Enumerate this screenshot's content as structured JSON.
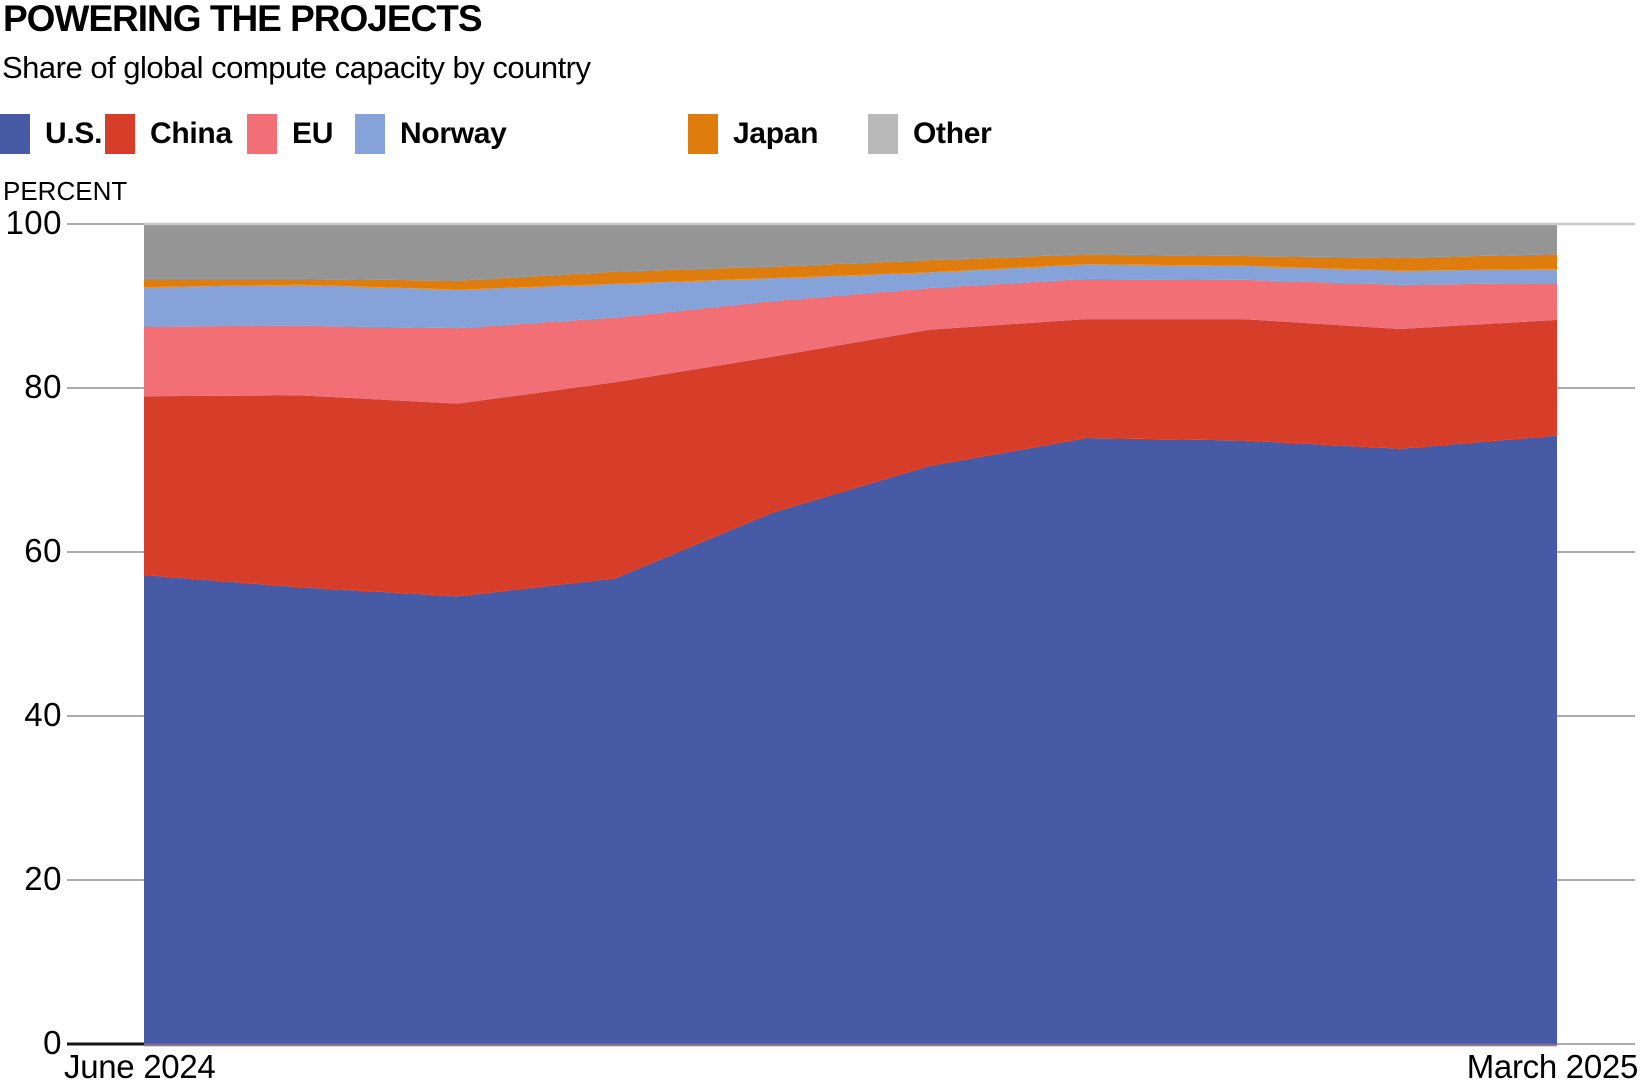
{
  "header": {
    "title": "POWERING THE PROJECTS",
    "subtitle": "Share of global compute capacity by country"
  },
  "y_axis": {
    "unit_label": "PERCENT",
    "ticks": [
      0,
      20,
      40,
      60,
      80,
      100
    ]
  },
  "x_axis": {
    "start_label": "June 2024",
    "end_label": "March 2025",
    "n_points": 10
  },
  "chart_data": {
    "type": "area",
    "stacked": true,
    "title": "POWERING THE PROJECTS",
    "subtitle": "Share of global compute capacity by country",
    "ylabel": "PERCENT",
    "ylim": [
      0,
      100
    ],
    "yticks": [
      0,
      20,
      40,
      60,
      80,
      100
    ],
    "grid": true,
    "legend_position": "top",
    "x_start": "June 2024",
    "x_end": "March 2025",
    "series": [
      {
        "name": "U.S.",
        "color": "#475AA5",
        "values": [
          57.2,
          55.7,
          54.6,
          56.8,
          64.8,
          70.5,
          73.9,
          73.6,
          72.6,
          74.2
        ]
      },
      {
        "name": "China",
        "color": "#D73E2A",
        "values": [
          21.8,
          23.4,
          23.5,
          23.9,
          19.0,
          16.6,
          14.5,
          14.8,
          14.6,
          14.1
        ]
      },
      {
        "name": "EU",
        "color": "#F26F75",
        "values": [
          8.5,
          8.5,
          9.2,
          7.9,
          6.8,
          5.1,
          4.9,
          4.8,
          5.4,
          4.5
        ]
      },
      {
        "name": "Norway",
        "color": "#85A2D9",
        "values": [
          4.8,
          5.0,
          4.7,
          4.1,
          2.8,
          1.9,
          1.8,
          1.7,
          1.7,
          1.7
        ]
      },
      {
        "name": "Japan",
        "color": "#DE7D0E",
        "values": [
          1.0,
          0.7,
          1.1,
          1.5,
          1.4,
          1.5,
          1.2,
          1.2,
          1.6,
          1.8
        ]
      },
      {
        "name": "Other",
        "color": "#959595",
        "legend_color": "#B9B9B9",
        "values": [
          6.7,
          6.7,
          6.9,
          5.8,
          5.2,
          4.4,
          3.7,
          3.9,
          4.1,
          3.7
        ]
      }
    ],
    "colors": {
      "gridline": "#ACACAC",
      "top_gridline_overlay": "#CACACA",
      "baseline": "#8E7484",
      "zero_tick": "#151515"
    }
  }
}
